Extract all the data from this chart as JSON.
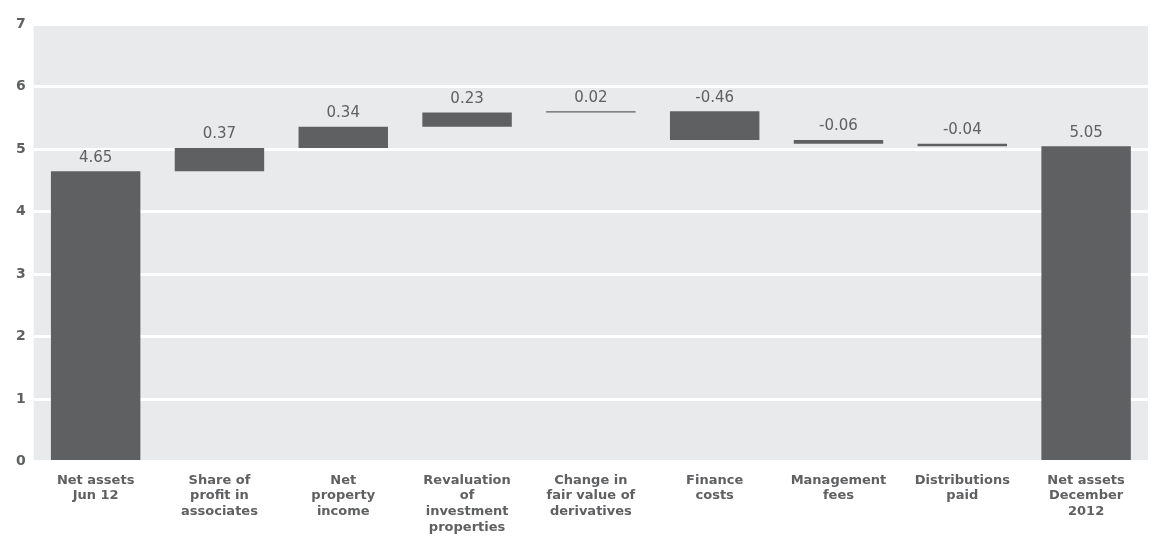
{
  "chart_data": {
    "type": "bar",
    "categories": [
      "Net assets\nJun 12",
      "Share of\nprofit in\nassociates",
      "Net\nproperty\nincome",
      "Revaluation\nof\ninvestment\nproperties",
      "Change in\nfair value of\nderivatives",
      "Finance\ncosts",
      "Management\nfees",
      "Distributions\npaid",
      "Net assets\nDecember\n2012"
    ],
    "values": [
      4.65,
      0.37,
      0.34,
      0.23,
      0.02,
      -0.46,
      -0.06,
      -0.04,
      5.05
    ],
    "base": [
      0,
      4.65,
      5.02,
      5.36,
      5.59,
      5.61,
      5.15,
      5.09,
      0
    ],
    "color": "#5f6062",
    "ylim": [
      0,
      7
    ],
    "yticks": [
      0,
      1,
      2,
      3,
      4,
      5,
      6,
      7
    ],
    "grid": "y",
    "data_labels": true,
    "legend": false
  }
}
